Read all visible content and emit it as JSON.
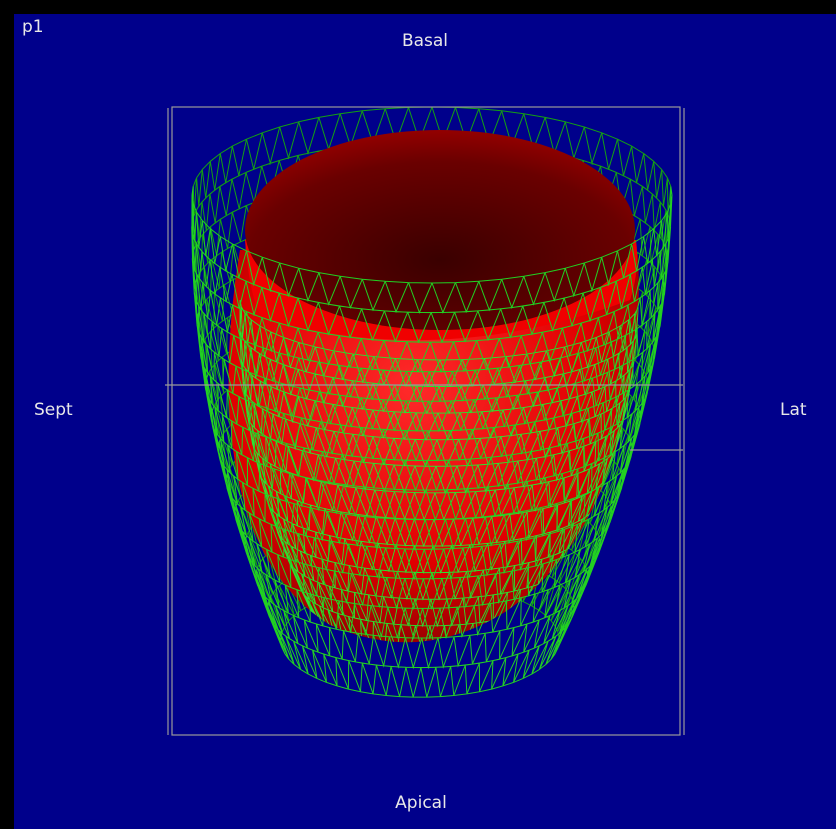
{
  "panel": {
    "id": "p1",
    "labels": {
      "top": "Basal",
      "left": "Sept",
      "right": "Lat",
      "bottom": "Apical"
    }
  }
}
